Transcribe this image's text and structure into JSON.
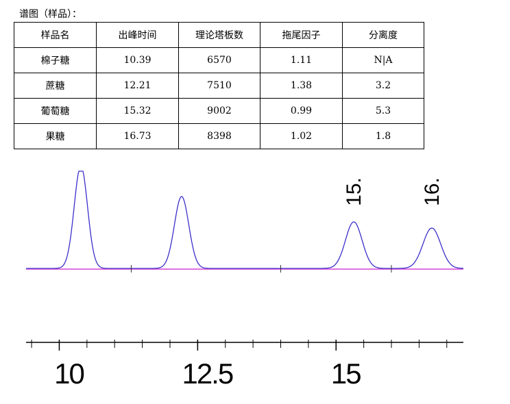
{
  "header": {
    "title": "谱图（样品）："
  },
  "table": {
    "columns": [
      "样品名",
      "出峰时间",
      "理论塔板数",
      "拖尾因子",
      "分离度"
    ],
    "rows": [
      [
        "棉子糖",
        "10.39",
        "6570",
        "1.11",
        "N|A"
      ],
      [
        "蔗糖",
        "12.21",
        "7510",
        "1.38",
        "3.2"
      ],
      [
        "葡萄糖",
        "15.32",
        "9002",
        "0.99",
        "5.3"
      ],
      [
        "果糖",
        "16.73",
        "8398",
        "1.02",
        "1.8"
      ]
    ]
  },
  "chromatogram": {
    "xlim": [
      9.4,
      17.3
    ],
    "xticks": [
      10,
      12.5,
      15
    ],
    "peak_heights": [
      150,
      105,
      68,
      59
    ],
    "peak_labels": [
      "15.",
      "16."
    ]
  }
}
